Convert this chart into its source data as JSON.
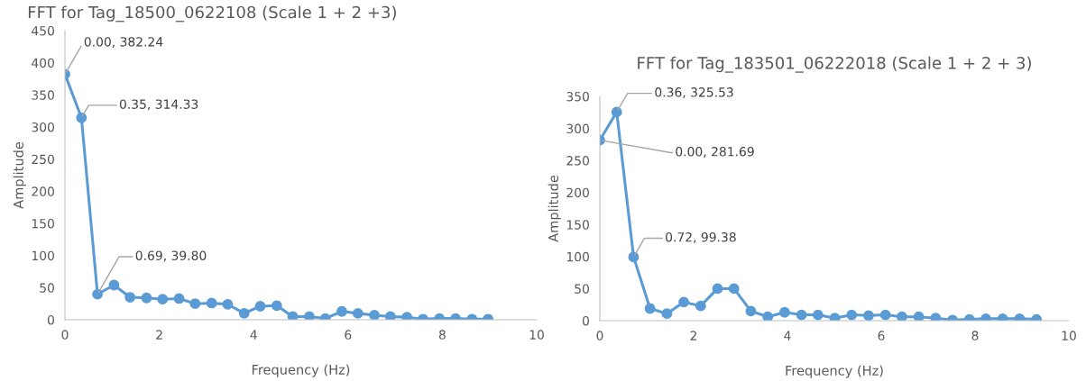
{
  "chart_data": [
    {
      "type": "line",
      "title": "FFT for Tag_18500_0622108 (Scale 1 + 2 +3)",
      "xlabel": "Frequency (Hz)",
      "ylabel": "Amplitude",
      "x": [
        0,
        0.35,
        0.69,
        1.04,
        1.38,
        1.73,
        2.07,
        2.42,
        2.76,
        3.11,
        3.45,
        3.8,
        4.14,
        4.49,
        4.83,
        5.18,
        5.52,
        5.87,
        6.21,
        6.56,
        6.9,
        7.25,
        7.59,
        7.94,
        8.28,
        8.63,
        8.97
      ],
      "series": [
        {
          "color": "#5b9bd5",
          "values": [
            382.24,
            314.33,
            39.8,
            54,
            35,
            34,
            32,
            33,
            25,
            26,
            24,
            10,
            21,
            22,
            5,
            5,
            2,
            13,
            10,
            7,
            5,
            4,
            1,
            2,
            2,
            1,
            1
          ]
        }
      ],
      "xlim": [
        0,
        10
      ],
      "xticks": [
        0,
        2,
        4,
        6,
        8,
        10
      ],
      "ylim": [
        0,
        450
      ],
      "yticks": [
        0,
        50,
        100,
        150,
        200,
        250,
        300,
        350,
        400,
        450
      ],
      "marker": "circle",
      "line_style": "solid",
      "grid": false,
      "legend": false,
      "annotations": [
        {
          "text": "0.00, 382.24",
          "x": 0,
          "y": 382.24
        },
        {
          "text": "0.35, 314.33",
          "x": 0.35,
          "y": 314.33
        },
        {
          "text": "0.69, 39.80",
          "x": 0.69,
          "y": 39.8
        }
      ]
    },
    {
      "type": "line",
      "title": "FFT for Tag_183501_06222018 (Scale 1 + 2 + 3)",
      "xlabel": "Frequency (Hz)",
      "ylabel": "Amplitude",
      "x": [
        0,
        0.36,
        0.72,
        1.07,
        1.43,
        1.79,
        2.15,
        2.51,
        2.86,
        3.22,
        3.58,
        3.94,
        4.3,
        4.65,
        5.01,
        5.37,
        5.73,
        6.09,
        6.44,
        6.8,
        7.16,
        7.52,
        7.88,
        8.23,
        8.59,
        8.95,
        9.31
      ],
      "series": [
        {
          "color": "#5b9bd5",
          "values": [
            281.69,
            325.53,
            99.38,
            19,
            11,
            29,
            23,
            50,
            50,
            15,
            6,
            13,
            9,
            9,
            4,
            9,
            8,
            9,
            6,
            6,
            4,
            1,
            2,
            3,
            3,
            3,
            2
          ]
        }
      ],
      "xlim": [
        0,
        10
      ],
      "xticks": [
        0,
        2,
        4,
        6,
        8,
        10
      ],
      "ylim": [
        0,
        350
      ],
      "yticks": [
        0,
        50,
        100,
        150,
        200,
        250,
        300,
        350
      ],
      "marker": "circle",
      "line_style": "solid",
      "grid": false,
      "legend": false,
      "annotations": [
        {
          "text": "0.36, 325.53",
          "x": 0.36,
          "y": 325.53
        },
        {
          "text": "0.00, 281.69",
          "x": 0,
          "y": 281.69
        },
        {
          "text": "0.72, 99.38",
          "x": 0.72,
          "y": 99.38
        }
      ]
    }
  ]
}
